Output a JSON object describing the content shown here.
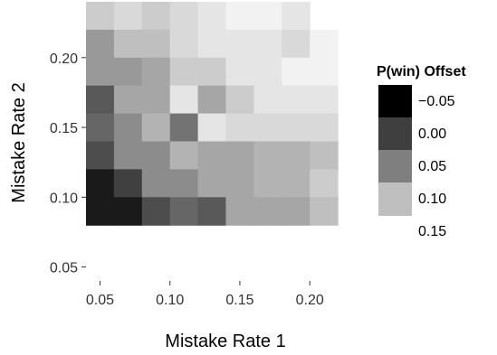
{
  "chart_data": {
    "type": "heatmap",
    "title": "",
    "xlabel": "Mistake Rate 1",
    "ylabel": "Mistake Rate 2",
    "x": [
      0.05,
      0.07,
      0.09,
      0.11,
      0.13,
      0.15,
      0.17,
      0.19,
      0.21,
      0.23
    ],
    "y": [
      0.23,
      0.21,
      0.19,
      0.17,
      0.15,
      0.13,
      0.11,
      0.09,
      0.07,
      0.05
    ],
    "x_ticks": [
      "0.05",
      "0.10",
      "0.15",
      "0.20"
    ],
    "x_tick_values": [
      0.05,
      0.1,
      0.15,
      0.2
    ],
    "y_ticks": [
      "0.05",
      "0.10",
      "0.15",
      "0.20"
    ],
    "y_tick_values": [
      0.05,
      0.1,
      0.15,
      0.2
    ],
    "xlim": [
      0.04,
      0.24
    ],
    "ylim": [
      0.04,
      0.24
    ],
    "z": [
      [
        0.11,
        0.12,
        0.11,
        0.12,
        0.13,
        0.14,
        0.14,
        0.13,
        null,
        null
      ],
      [
        0.07,
        0.1,
        0.1,
        0.12,
        0.13,
        0.13,
        0.13,
        0.12,
        0.14,
        null
      ],
      [
        0.07,
        0.07,
        0.08,
        0.11,
        0.11,
        0.13,
        0.13,
        0.14,
        0.14,
        null
      ],
      [
        0.02,
        0.08,
        0.08,
        0.13,
        0.08,
        0.11,
        0.13,
        0.13,
        0.13,
        null
      ],
      [
        0.03,
        0.06,
        0.09,
        0.04,
        0.13,
        0.12,
        0.12,
        0.12,
        0.12,
        null
      ],
      [
        0.01,
        0.06,
        0.06,
        0.09,
        0.08,
        0.08,
        0.09,
        0.09,
        0.1,
        null
      ],
      [
        -0.03,
        0.0,
        0.06,
        0.06,
        0.08,
        0.08,
        0.09,
        0.09,
        0.11,
        null
      ],
      [
        -0.03,
        -0.03,
        0.01,
        0.03,
        0.02,
        0.08,
        0.08,
        0.08,
        0.1,
        null
      ],
      [
        null,
        null,
        null,
        null,
        null,
        null,
        null,
        null,
        null,
        null
      ],
      [
        null,
        null,
        null,
        null,
        null,
        null,
        null,
        null,
        null,
        null
      ]
    ],
    "legend": {
      "title": "P(win) Offset",
      "labels": [
        "−0.05",
        "0.00",
        "0.05",
        "0.10",
        "0.15"
      ],
      "values": [
        -0.05,
        0.0,
        0.05,
        0.1,
        0.15
      ],
      "colors": [
        "#000000",
        "#3f3f3f",
        "#7f7f7f",
        "#bfbfbf"
      ],
      "placement": "right"
    },
    "color_scale": {
      "low": "#000000",
      "high": "#ffffff",
      "min": -0.05,
      "max": 0.15
    },
    "grid": false
  }
}
